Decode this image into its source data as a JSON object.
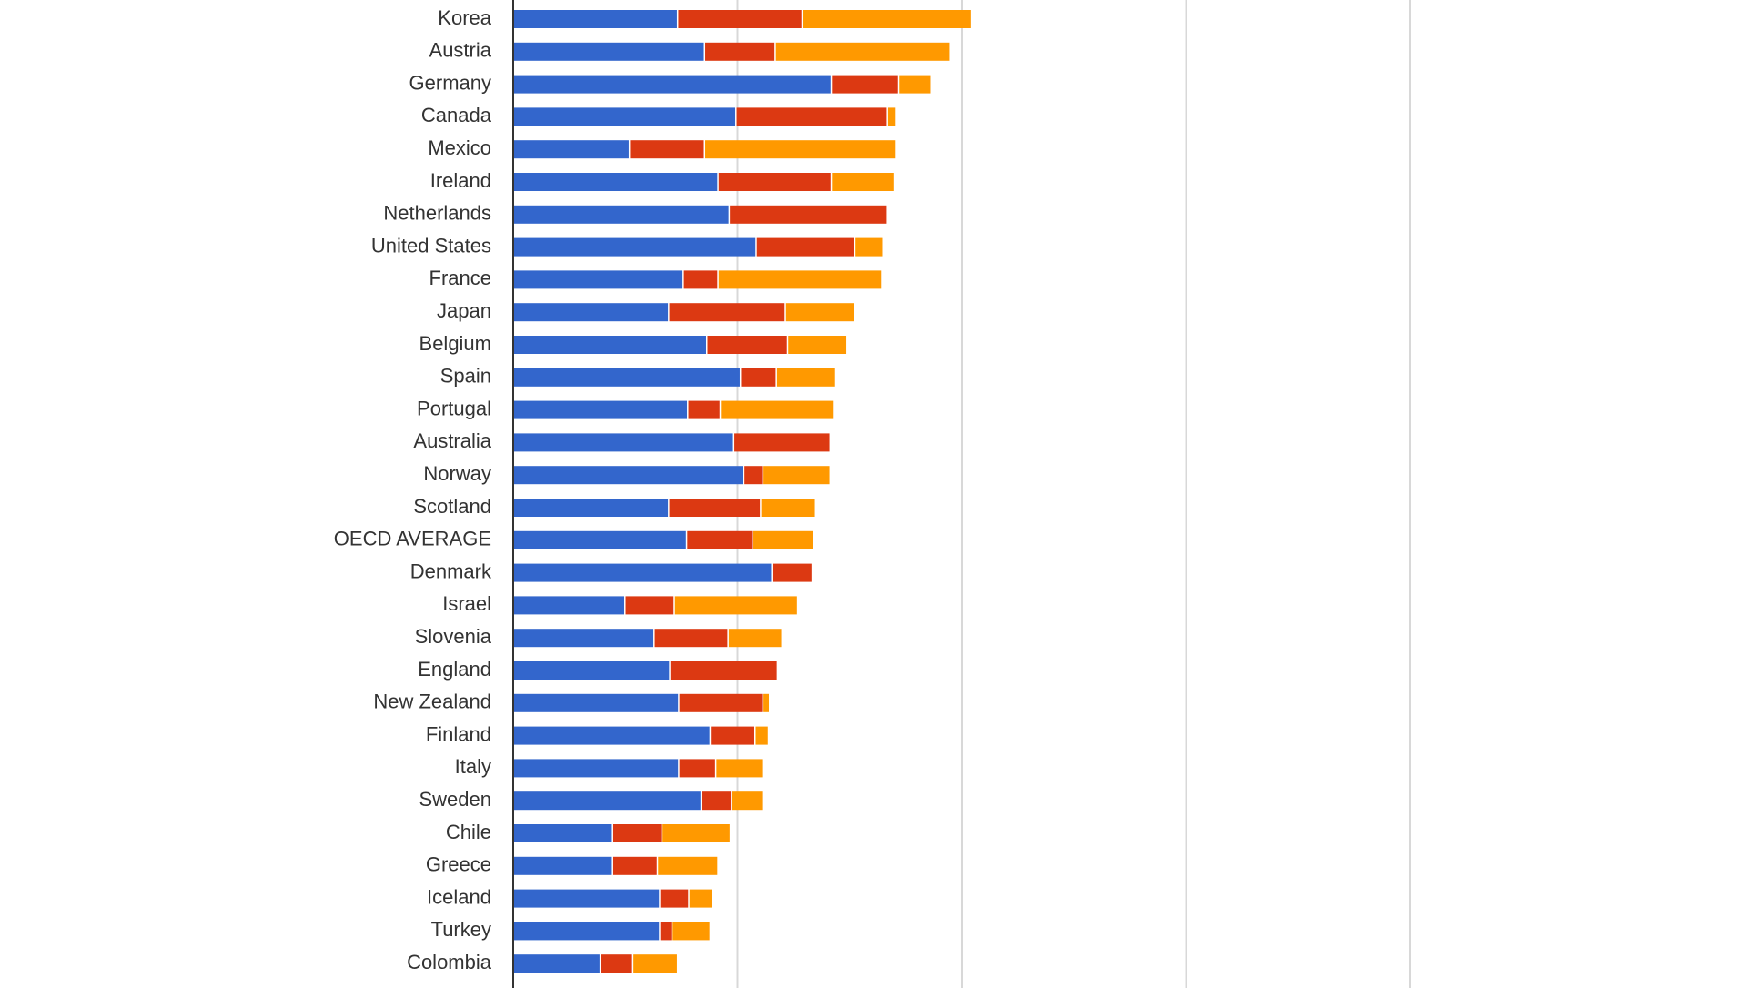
{
  "chart_data": {
    "type": "bar",
    "orientation": "horizontal",
    "stacked": true,
    "grid": true,
    "xlim": [
      0,
      400
    ],
    "categories": [
      "Korea",
      "Austria",
      "Germany",
      "Canada",
      "Mexico",
      "Ireland",
      "Netherlands",
      "United States",
      "France",
      "Japan",
      "Belgium",
      "Spain",
      "Portugal",
      "Australia",
      "Norway",
      "Scotland",
      "OECD AVERAGE",
      "Denmark",
      "Israel",
      "Slovenia",
      "England",
      "New Zealand",
      "Finland",
      "Italy",
      "Sweden",
      "Chile",
      "Greece",
      "Iceland",
      "Turkey",
      "Colombia"
    ],
    "series": [
      {
        "color": "#3366cc",
        "values": [
          73,
          85,
          141.5,
          99,
          51.5,
          91,
          96,
          108,
          75.5,
          69,
          86,
          101,
          77.5,
          98,
          102.5,
          69,
          77,
          115,
          49.5,
          62.5,
          69.5,
          73.5,
          87.5,
          73.5,
          83.5,
          44,
          44,
          65,
          65,
          38.5
        ]
      },
      {
        "color": "#dc3912",
        "values": [
          55.5,
          31.5,
          30,
          67.5,
          33.5,
          50.5,
          70.5,
          44,
          15.5,
          52,
          36,
          16,
          14.5,
          43,
          8.5,
          41,
          29.5,
          18,
          22,
          33,
          48,
          37.5,
          20,
          16.5,
          13.5,
          22,
          20,
          13,
          5.5,
          14.5
        ]
      },
      {
        "color": "#ff9900",
        "values": [
          75.5,
          78,
          14.5,
          4,
          85.5,
          28,
          0,
          12.5,
          73,
          31,
          26.5,
          26.5,
          50.5,
          0,
          30,
          24.5,
          27,
          0,
          55,
          24,
          0,
          3,
          6,
          21,
          14,
          30.5,
          27,
          10.5,
          17,
          20
        ]
      }
    ]
  }
}
